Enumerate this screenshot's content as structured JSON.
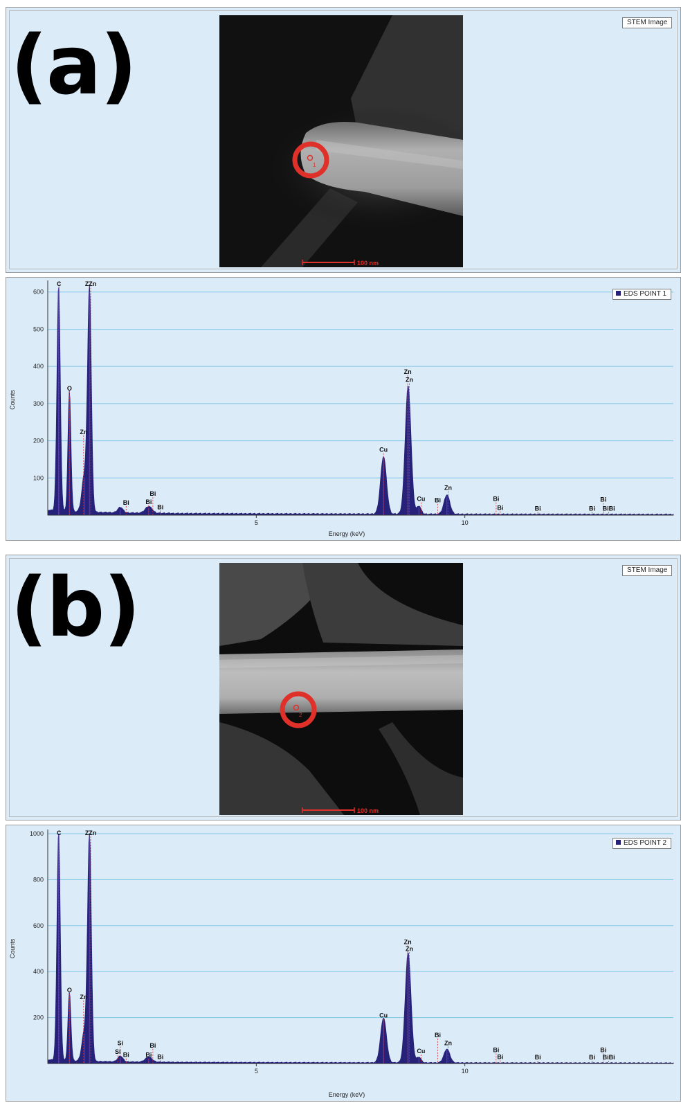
{
  "panels": [
    {
      "label": "(a)",
      "image_tag": "STEM Image",
      "scalebar": "100 nm",
      "marker": "1"
    },
    {
      "label": "(b)",
      "image_tag": "STEM Image",
      "scalebar": "100 nm",
      "marker": "2"
    }
  ],
  "colors": {
    "background": "#dcebf8",
    "spectrum_fill": "#26227a",
    "peak_marker": "#d03030",
    "gridline": "#7fc8e6",
    "marker_ring": "#e0302a"
  },
  "chart_data": [
    {
      "type": "area",
      "legend": "EDS POINT 1",
      "legend_position": "top-right",
      "xlabel": "Energy (keV)",
      "ylabel": "Counts",
      "xlim": [
        0,
        15
      ],
      "ylim": [
        0,
        620
      ],
      "xticks": [
        5,
        10
      ],
      "xtick_labels": [
        "5",
        "10"
      ],
      "yticks": [
        100,
        200,
        300,
        400,
        500,
        600
      ],
      "ytick_labels": [
        "100",
        "200",
        "300",
        "400",
        "500",
        "600"
      ],
      "grid": true,
      "peaks": [
        {
          "x": 0.26,
          "y": 610,
          "w": 0.04
        },
        {
          "x": 0.52,
          "y": 325,
          "w": 0.035
        },
        {
          "x": 0.88,
          "y": 100,
          "w": 0.06
        },
        {
          "x": 1.0,
          "y": 600,
          "w": 0.045
        },
        {
          "x": 1.74,
          "y": 15,
          "w": 0.06
        },
        {
          "x": 2.42,
          "y": 18,
          "w": 0.08
        },
        {
          "x": 8.05,
          "y": 155,
          "w": 0.07
        },
        {
          "x": 8.64,
          "y": 345,
          "w": 0.07
        },
        {
          "x": 8.9,
          "y": 22,
          "w": 0.05
        },
        {
          "x": 9.57,
          "y": 52,
          "w": 0.07
        }
      ],
      "baseline": 5,
      "peak_labels": [
        {
          "text": "C",
          "x": 0.27,
          "y": 630,
          "line_to": 610
        },
        {
          "text": "O",
          "x": 0.52,
          "y": 335,
          "line_to": 325
        },
        {
          "text": "Zn",
          "x": 0.86,
          "y": 218,
          "line_to": 120
        },
        {
          "text": "ZZn",
          "x": 1.03,
          "y": 630,
          "line_to": 600
        },
        {
          "text": "Bi",
          "x": 1.88,
          "y": 28,
          "line_to": 12
        },
        {
          "text": "Bi",
          "x": 2.52,
          "y": 52,
          "line_to": 20
        },
        {
          "text": "Bi",
          "x": 2.42,
          "y": 30,
          "line_to": 14
        },
        {
          "text": "Bi",
          "x": 2.7,
          "y": 16,
          "line_to": 8
        },
        {
          "text": "Cu",
          "x": 8.05,
          "y": 170,
          "line_to": 155
        },
        {
          "text": "Zn",
          "x": 8.63,
          "y": 380,
          "line_to": 355
        },
        {
          "text": "Zn",
          "x": 8.67,
          "y": 358,
          "line_to": 345
        },
        {
          "text": "Cu",
          "x": 8.95,
          "y": 38,
          "line_to": 22
        },
        {
          "text": "Bi",
          "x": 9.35,
          "y": 34,
          "line_to": 12
        },
        {
          "text": "Zn",
          "x": 9.6,
          "y": 68,
          "line_to": 52
        },
        {
          "text": "Bi",
          "x": 10.75,
          "y": 38,
          "line_to": 14
        },
        {
          "text": "Bi",
          "x": 10.85,
          "y": 14,
          "line_to": 6
        },
        {
          "text": "Bi",
          "x": 11.75,
          "y": 12,
          "line_to": 6
        },
        {
          "text": "Bi",
          "x": 13.05,
          "y": 12,
          "line_to": 6
        },
        {
          "text": "Bi",
          "x": 13.32,
          "y": 36,
          "line_to": 12
        },
        {
          "text": "BiBi",
          "x": 13.45,
          "y": 12,
          "line_to": 6
        }
      ]
    },
    {
      "type": "area",
      "legend": "EDS POINT 2",
      "legend_position": "top-right",
      "xlabel": "Energy (keV)",
      "ylabel": "Counts",
      "xlim": [
        0,
        15
      ],
      "ylim": [
        0,
        1000
      ],
      "xticks": [
        5,
        10
      ],
      "xtick_labels": [
        "5",
        "10"
      ],
      "yticks": [
        200,
        400,
        600,
        800,
        1000
      ],
      "ytick_labels": [
        "200",
        "400",
        "600",
        "800",
        "1000"
      ],
      "grid": true,
      "peaks": [
        {
          "x": 0.26,
          "y": 1000,
          "w": 0.04
        },
        {
          "x": 0.52,
          "y": 300,
          "w": 0.035
        },
        {
          "x": 0.88,
          "y": 130,
          "w": 0.06
        },
        {
          "x": 1.0,
          "y": 990,
          "w": 0.045
        },
        {
          "x": 1.74,
          "y": 25,
          "w": 0.06
        },
        {
          "x": 2.42,
          "y": 22,
          "w": 0.08
        },
        {
          "x": 8.05,
          "y": 195,
          "w": 0.07
        },
        {
          "x": 8.64,
          "y": 480,
          "w": 0.07
        },
        {
          "x": 8.9,
          "y": 25,
          "w": 0.05
        },
        {
          "x": 9.57,
          "y": 60,
          "w": 0.07
        }
      ],
      "baseline": 6,
      "peak_labels": [
        {
          "text": "C",
          "x": 0.27,
          "y": 1025,
          "line_to": 1000
        },
        {
          "text": "O",
          "x": 0.52,
          "y": 310,
          "line_to": 300
        },
        {
          "text": "Zn",
          "x": 0.86,
          "y": 280,
          "line_to": 150
        },
        {
          "text": "ZZn",
          "x": 1.03,
          "y": 1025,
          "line_to": 990
        },
        {
          "text": "Si",
          "x": 1.74,
          "y": 80,
          "line_to": 30
        },
        {
          "text": "Si",
          "x": 1.68,
          "y": 42,
          "line_to": 20
        },
        {
          "text": "Bi",
          "x": 1.88,
          "y": 28,
          "line_to": 12
        },
        {
          "text": "Bi",
          "x": 2.52,
          "y": 70,
          "line_to": 22
        },
        {
          "text": "Bi",
          "x": 2.42,
          "y": 28,
          "line_to": 14
        },
        {
          "text": "Bi",
          "x": 2.7,
          "y": 20,
          "line_to": 8
        },
        {
          "text": "Cu",
          "x": 8.05,
          "y": 200,
          "line_to": 195
        },
        {
          "text": "Zn",
          "x": 8.63,
          "y": 520,
          "line_to": 495
        },
        {
          "text": "Zn",
          "x": 8.67,
          "y": 490,
          "line_to": 480
        },
        {
          "text": "Cu",
          "x": 8.95,
          "y": 45,
          "line_to": 25
        },
        {
          "text": "Bi",
          "x": 9.35,
          "y": 115,
          "line_to": 60
        },
        {
          "text": "Zn",
          "x": 9.6,
          "y": 80,
          "line_to": 60
        },
        {
          "text": "Bi",
          "x": 10.75,
          "y": 50,
          "line_to": 14
        },
        {
          "text": "Bi",
          "x": 10.85,
          "y": 20,
          "line_to": 6
        },
        {
          "text": "Bi",
          "x": 11.75,
          "y": 18,
          "line_to": 6
        },
        {
          "text": "Bi",
          "x": 13.05,
          "y": 18,
          "line_to": 6
        },
        {
          "text": "Bi",
          "x": 13.32,
          "y": 50,
          "line_to": 12
        },
        {
          "text": "BiBi",
          "x": 13.45,
          "y": 18,
          "line_to": 6
        }
      ]
    }
  ]
}
